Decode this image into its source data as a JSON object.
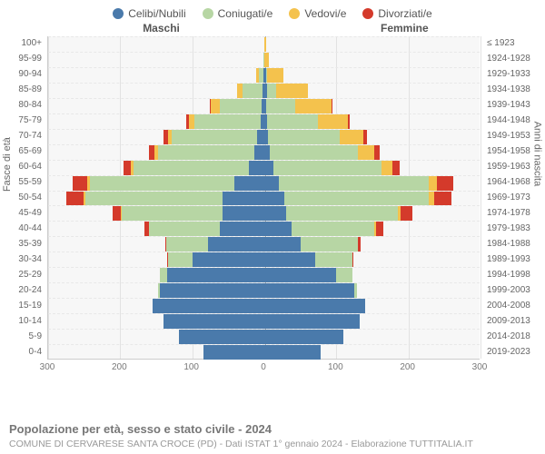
{
  "chart_type": "population_pyramid_stacked",
  "title": "Popolazione per età, sesso e stato civile - 2024",
  "subtitle": "COMUNE DI CERVARESE SANTA CROCE (PD) - Dati ISTAT 1° gennaio 2024 - Elaborazione TUTTITALIA.IT",
  "gender_left_label": "Maschi",
  "gender_right_label": "Femmine",
  "y_axis_left_label": "Fasce di età",
  "y_axis_right_label": "Anni di nascita",
  "legend": [
    {
      "key": "celibi",
      "label": "Celibi/Nubili",
      "color": "#4a7aab"
    },
    {
      "key": "coniugati",
      "label": "Coniugati/e",
      "color": "#b7d6a4"
    },
    {
      "key": "vedovi",
      "label": "Vedovi/e",
      "color": "#f4c24d"
    },
    {
      "key": "divorziati",
      "label": "Divorziati/e",
      "color": "#d43a2b"
    }
  ],
  "colors": {
    "celibi": "#4a7aab",
    "coniugati": "#b7d6a4",
    "vedovi": "#f4c24d",
    "divorziati": "#d43a2b"
  },
  "x_ticks": [
    300,
    200,
    100,
    0,
    100,
    200,
    300
  ],
  "x_max": 300,
  "plot_bg": "#f7f7f7",
  "grid_color": "#e2e2e2",
  "rows": [
    {
      "age": "100+",
      "birth": "≤ 1923",
      "m": {
        "celibi": 0,
        "coniugati": 0,
        "vedovi": 0,
        "divorziati": 0
      },
      "f": {
        "celibi": 0,
        "coniugati": 0,
        "vedovi": 2,
        "divorziati": 0
      }
    },
    {
      "age": "95-99",
      "birth": "1924-1928",
      "m": {
        "celibi": 0,
        "coniugati": 1,
        "vedovi": 0,
        "divorziati": 0
      },
      "f": {
        "celibi": 0,
        "coniugati": 0,
        "vedovi": 6,
        "divorziati": 0
      }
    },
    {
      "age": "90-94",
      "birth": "1929-1933",
      "m": {
        "celibi": 1,
        "coniugati": 6,
        "vedovi": 4,
        "divorziati": 0
      },
      "f": {
        "celibi": 2,
        "coniugati": 2,
        "vedovi": 22,
        "divorziati": 0
      }
    },
    {
      "age": "85-89",
      "birth": "1934-1938",
      "m": {
        "celibi": 2,
        "coniugati": 28,
        "vedovi": 8,
        "divorziati": 0
      },
      "f": {
        "celibi": 4,
        "coniugati": 12,
        "vedovi": 44,
        "divorziati": 0
      }
    },
    {
      "age": "80-84",
      "birth": "1939-1943",
      "m": {
        "celibi": 4,
        "coniugati": 58,
        "vedovi": 12,
        "divorziati": 2
      },
      "f": {
        "celibi": 3,
        "coniugati": 40,
        "vedovi": 50,
        "divorziati": 2
      }
    },
    {
      "age": "75-79",
      "birth": "1944-1948",
      "m": {
        "celibi": 5,
        "coniugati": 92,
        "vedovi": 8,
        "divorziati": 3
      },
      "f": {
        "celibi": 4,
        "coniugati": 70,
        "vedovi": 42,
        "divorziati": 3
      }
    },
    {
      "age": "70-74",
      "birth": "1949-1953",
      "m": {
        "celibi": 10,
        "coniugati": 118,
        "vedovi": 6,
        "divorziati": 6
      },
      "f": {
        "celibi": 5,
        "coniugati": 100,
        "vedovi": 32,
        "divorziati": 5
      }
    },
    {
      "age": "65-69",
      "birth": "1954-1958",
      "m": {
        "celibi": 14,
        "coniugati": 134,
        "vedovi": 4,
        "divorziati": 8
      },
      "f": {
        "celibi": 8,
        "coniugati": 122,
        "vedovi": 22,
        "divorziati": 8
      }
    },
    {
      "age": "60-64",
      "birth": "1959-1963",
      "m": {
        "celibi": 22,
        "coniugati": 160,
        "vedovi": 3,
        "divorziati": 10
      },
      "f": {
        "celibi": 12,
        "coniugati": 150,
        "vedovi": 16,
        "divorziati": 10
      }
    },
    {
      "age": "55-59",
      "birth": "1964-1968",
      "m": {
        "celibi": 42,
        "coniugati": 200,
        "vedovi": 4,
        "divorziati": 20
      },
      "f": {
        "celibi": 20,
        "coniugati": 208,
        "vedovi": 12,
        "divorziati": 22
      }
    },
    {
      "age": "50-54",
      "birth": "1969-1973",
      "m": {
        "celibi": 58,
        "coniugati": 190,
        "vedovi": 3,
        "divorziati": 24
      },
      "f": {
        "celibi": 28,
        "coniugati": 200,
        "vedovi": 8,
        "divorziati": 24
      }
    },
    {
      "age": "45-49",
      "birth": "1974-1978",
      "m": {
        "celibi": 58,
        "coniugati": 140,
        "vedovi": 1,
        "divorziati": 12
      },
      "f": {
        "celibi": 30,
        "coniugati": 155,
        "vedovi": 4,
        "divorziati": 16
      }
    },
    {
      "age": "40-44",
      "birth": "1979-1983",
      "m": {
        "celibi": 62,
        "coniugati": 98,
        "vedovi": 0,
        "divorziati": 6
      },
      "f": {
        "celibi": 38,
        "coniugati": 115,
        "vedovi": 2,
        "divorziati": 10
      }
    },
    {
      "age": "35-39",
      "birth": "1984-1988",
      "m": {
        "celibi": 78,
        "coniugati": 58,
        "vedovi": 0,
        "divorziati": 2
      },
      "f": {
        "celibi": 50,
        "coniugati": 80,
        "vedovi": 0,
        "divorziati": 4
      }
    },
    {
      "age": "30-34",
      "birth": "1989-1993",
      "m": {
        "celibi": 100,
        "coniugati": 34,
        "vedovi": 0,
        "divorziati": 1
      },
      "f": {
        "celibi": 70,
        "coniugati": 52,
        "vedovi": 0,
        "divorziati": 2
      }
    },
    {
      "age": "25-29",
      "birth": "1994-1998",
      "m": {
        "celibi": 135,
        "coniugati": 10,
        "vedovi": 0,
        "divorziati": 0
      },
      "f": {
        "celibi": 100,
        "coniugati": 22,
        "vedovi": 0,
        "divorziati": 0
      }
    },
    {
      "age": "20-24",
      "birth": "1999-2003",
      "m": {
        "celibi": 145,
        "coniugati": 2,
        "vedovi": 0,
        "divorziati": 0
      },
      "f": {
        "celibi": 125,
        "coniugati": 4,
        "vedovi": 0,
        "divorziati": 0
      }
    },
    {
      "age": "15-19",
      "birth": "2004-2008",
      "m": {
        "celibi": 155,
        "coniugati": 0,
        "vedovi": 0,
        "divorziati": 0
      },
      "f": {
        "celibi": 140,
        "coniugati": 0,
        "vedovi": 0,
        "divorziati": 0
      }
    },
    {
      "age": "10-14",
      "birth": "2009-2013",
      "m": {
        "celibi": 140,
        "coniugati": 0,
        "vedovi": 0,
        "divorziati": 0
      },
      "f": {
        "celibi": 132,
        "coniugati": 0,
        "vedovi": 0,
        "divorziati": 0
      }
    },
    {
      "age": "5-9",
      "birth": "2014-2018",
      "m": {
        "celibi": 118,
        "coniugati": 0,
        "vedovi": 0,
        "divorziati": 0
      },
      "f": {
        "celibi": 110,
        "coniugati": 0,
        "vedovi": 0,
        "divorziati": 0
      }
    },
    {
      "age": "0-4",
      "birth": "2019-2023",
      "m": {
        "celibi": 85,
        "coniugati": 0,
        "vedovi": 0,
        "divorziati": 0
      },
      "f": {
        "celibi": 78,
        "coniugati": 0,
        "vedovi": 0,
        "divorziati": 0
      }
    }
  ]
}
